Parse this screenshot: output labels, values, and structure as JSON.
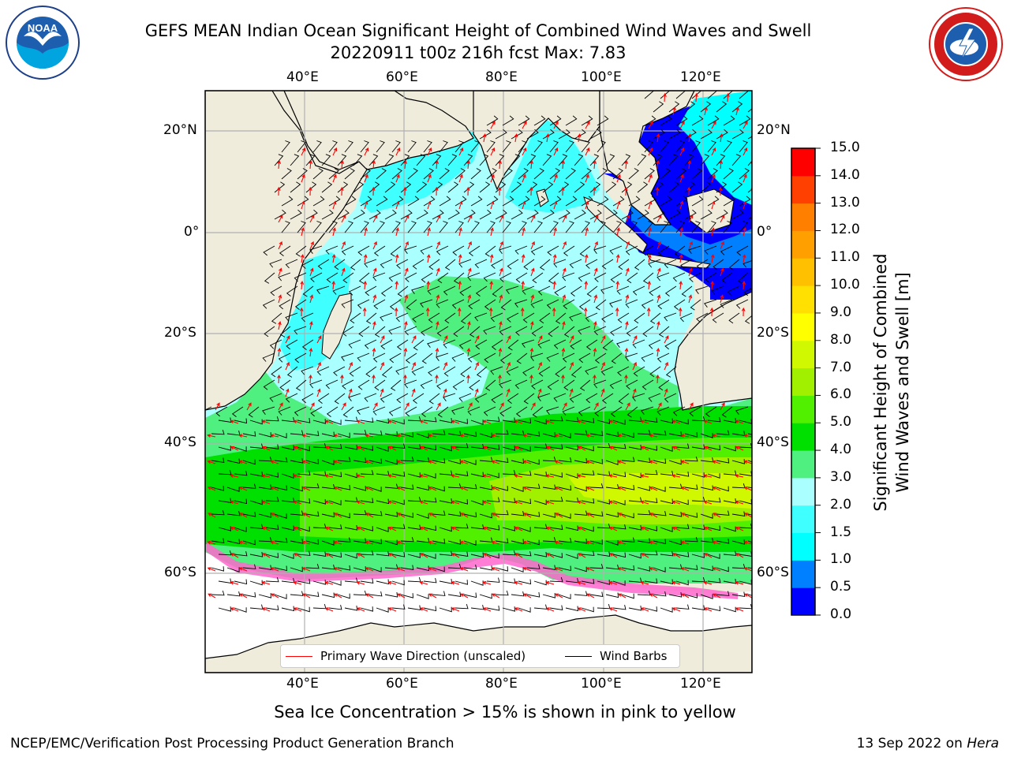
{
  "title": {
    "line1": "GEFS MEAN Indian Ocean Significant Height of Combined Wind Waves and Swell",
    "line2": "20220911 t00z 216h fcst   Max: 7.83"
  },
  "logos": {
    "left": {
      "name": "NOAA",
      "text": "NOAA",
      "ring_text": "NATIONAL OCEANIC AND ATMOSPHERIC ADMINISTRATION · U.S. DEPARTMENT OF COMMERCE"
    },
    "right": {
      "name": "National Weather Service",
      "ring_text": "NATIONAL WEATHER SERVICE"
    }
  },
  "map": {
    "lon_range": [
      20,
      130
    ],
    "lat_range": [
      -70,
      28
    ],
    "lon_ticks": [
      "40°E",
      "60°E",
      "80°E",
      "100°E",
      "120°E"
    ],
    "lat_ticks": [
      "20°N",
      "0°",
      "20°S",
      "40°S",
      "60°S"
    ],
    "land_color": "#efecdc",
    "grid": true
  },
  "colorbar": {
    "label_line1": "Significant Height of Combined",
    "label_line2": "Wind Waves and Swell [m]",
    "ticks": [
      "0.0",
      "0.5",
      "1.0",
      "1.5",
      "2.0",
      "3.0",
      "4.0",
      "5.0",
      "6.0",
      "7.0",
      "8.0",
      "9.0",
      "10.0",
      "11.0",
      "12.0",
      "13.0",
      "14.0",
      "15.0"
    ],
    "colors": [
      "#0000ff",
      "#0080ff",
      "#00ffff",
      "#40ffff",
      "#aaffff",
      "#50f080",
      "#00e000",
      "#50f000",
      "#a0f000",
      "#d0f800",
      "#ffff00",
      "#ffe000",
      "#ffc000",
      "#ffa000",
      "#ff8000",
      "#ff4000",
      "#ff0000"
    ]
  },
  "legend": {
    "wave_direction": "Primary Wave Direction (unscaled)",
    "wind_barbs": "Wind Barbs",
    "wave_color": "#ff0000",
    "barb_color": "#000000"
  },
  "subcaption": "Sea Ice Concentration > 15% is shown in pink to yellow",
  "footer": {
    "left": "NCEP/EMC/Verification Post Processing Product Generation Branch",
    "right_prefix": "13 Sep 2022 on ",
    "right_host": "Hera"
  }
}
